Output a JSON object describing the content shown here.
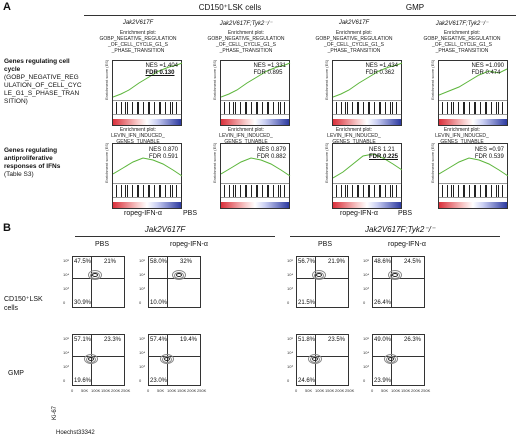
{
  "panelA": {
    "letter": "A",
    "groups": [
      "CD150⁺LSK cells",
      "GMP"
    ],
    "genotypes": [
      "Jak2V617F",
      "Jak2V617F;Tyk2⁻/⁻",
      "Jak2V617F",
      "Jak2V617F;Tyk2⁻/⁻"
    ],
    "row1": {
      "title": "Genes regulating cell cycle",
      "sub": "(GOBP_NEGATIVE_REGULATION_OF_CELL_CYCLE_G1_S_PHASE_TRANSITION)",
      "enrich": "Enrichment plot:\nGOBP_NEGATIVE_REGULATION\n_OF_CELL_CYCLE_G1_S\n_PHASE_TRANSITION",
      "stats": [
        {
          "nes": "NES =1.404",
          "fdr": "FDR 0.130",
          "bold": true
        },
        {
          "nes": "NES =1.331",
          "fdr": "FDR 0.895",
          "bold": false
        },
        {
          "nes": "NES =1.434",
          "fdr": "FDR 0.362",
          "bold": false
        },
        {
          "nes": "NES =1.090",
          "fdr": "FDR 0.474",
          "bold": false
        }
      ]
    },
    "row2": {
      "title": "Genes regulating antiproliferative responses of IFNs",
      "sub": "(Table S3)",
      "enrich": "Enrichment plot:\nLEVIN_IFN_INDUCED_\nGENES_TUNABLE",
      "stats": [
        {
          "nes": "NES 0.870",
          "fdr": "FDR 0.591",
          "bold": false
        },
        {
          "nes": "NES 0.879",
          "fdr": "FDR 0.882",
          "bold": false
        },
        {
          "nes": "NES 1.21",
          "fdr": "FDR 0.225",
          "bold": true
        },
        {
          "nes": "NES =0.97",
          "fdr": "FDR 0.539",
          "bold": false
        }
      ]
    },
    "yaxis": "Enrichment score (ES)",
    "xleft": "ropeg-IFN-α",
    "xright": "PBS"
  },
  "panelB": {
    "letter": "B",
    "geno_left": "Jak2V617F",
    "geno_right": "Jak2V617F;Tyk2⁻/⁻",
    "cols": [
      "PBS",
      "ropeg-IFN-α",
      "PBS",
      "ropeg-IFN-α"
    ],
    "row1_label": "CD150⁺LSK cells",
    "row2_label": "GMP",
    "row1": [
      {
        "ul": "47.5%",
        "ur": "21%",
        "ll": "30.9%"
      },
      {
        "ul": "58.0%",
        "ur": "32%",
        "ll": "10.0%"
      },
      {
        "ul": "56.7%",
        "ur": "21.9%",
        "ll": "21.5%"
      },
      {
        "ul": "48.6%",
        "ur": "24.5%",
        "ll": "26.4%"
      }
    ],
    "row2": [
      {
        "ul": "57.1%",
        "ur": "23.3%",
        "ll": "19.6%"
      },
      {
        "ul": "57.4%",
        "ur": "19.4%",
        "ll": "23.0%"
      },
      {
        "ul": "51.8%",
        "ur": "23.5%",
        "ll": "24.6%"
      },
      {
        "ul": "49.0%",
        "ur": "26.3%",
        "ll": "23.9%"
      }
    ],
    "yticks": [
      "10⁵",
      "10⁴",
      "10³",
      "0"
    ],
    "xticks": [
      "0",
      "50K",
      "100K",
      "150K",
      "200K",
      "250K"
    ],
    "ylabel": "Ki-67",
    "xlabel": "Hoechst33342"
  }
}
